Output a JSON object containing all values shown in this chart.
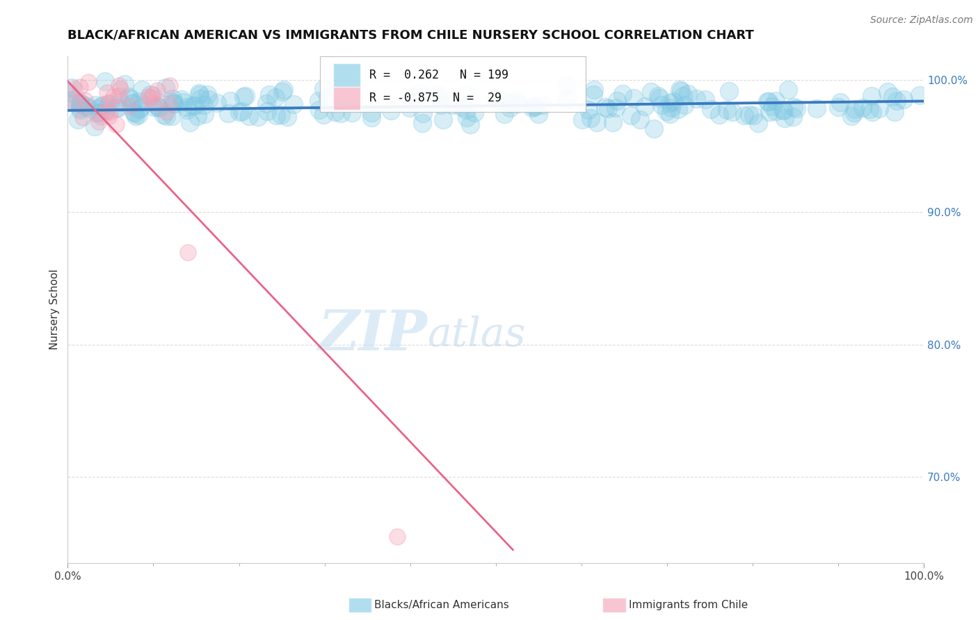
{
  "title": "BLACK/AFRICAN AMERICAN VS IMMIGRANTS FROM CHILE NURSERY SCHOOL CORRELATION CHART",
  "source": "Source: ZipAtlas.com",
  "ylabel": "Nursery School",
  "xlim": [
    0.0,
    1.0
  ],
  "ylim": [
    0.635,
    1.018
  ],
  "yticks": [
    0.7,
    0.8,
    0.9,
    1.0
  ],
  "ytick_labels": [
    "70.0%",
    "80.0%",
    "90.0%",
    "100.0%"
  ],
  "xtick_labels": [
    "0.0%",
    "100.0%"
  ],
  "blue_R": 0.262,
  "blue_N": 199,
  "pink_R": -0.875,
  "pink_N": 29,
  "blue_color": "#7ec8e3",
  "pink_color": "#f4a0b5",
  "blue_line_color": "#3a7abf",
  "pink_line_color": "#e8648a",
  "legend_label_blue": "Blacks/African Americans",
  "legend_label_pink": "Immigrants from Chile",
  "watermark_zip": "ZIP",
  "watermark_atlas": "atlas",
  "background_color": "#ffffff",
  "grid_color": "#cccccc",
  "title_fontsize": 13,
  "source_fontsize": 10,
  "blue_trend_start_x": 0.0,
  "blue_trend_start_y": 0.977,
  "blue_trend_end_x": 1.0,
  "blue_trend_end_y": 0.984,
  "pink_trend_start_x": 0.0,
  "pink_trend_start_y": 0.999,
  "pink_trend_end_x": 0.52,
  "pink_trend_end_y": 0.645
}
